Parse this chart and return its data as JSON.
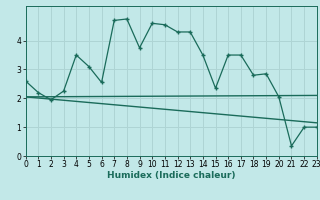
{
  "title": "",
  "xlabel": "Humidex (Indice chaleur)",
  "bg_color": "#c2e8e8",
  "line_color": "#1a6b5a",
  "grid_color": "#aed4d4",
  "xdata": [
    0,
    1,
    2,
    3,
    4,
    5,
    6,
    7,
    8,
    9,
    10,
    11,
    12,
    13,
    14,
    15,
    16,
    17,
    18,
    19,
    20,
    21,
    22,
    23
  ],
  "ydata": [
    2.6,
    2.2,
    1.95,
    2.25,
    3.5,
    3.1,
    2.55,
    4.7,
    4.75,
    3.75,
    4.6,
    4.55,
    4.3,
    4.3,
    3.5,
    2.35,
    3.5,
    3.5,
    2.8,
    2.85,
    2.05,
    0.35,
    1.0,
    1.0
  ],
  "trend1_x": [
    0,
    23
  ],
  "trend1_y": [
    2.05,
    2.1
  ],
  "trend2_x": [
    0,
    23
  ],
  "trend2_y": [
    2.05,
    1.15
  ],
  "xlim": [
    0,
    23
  ],
  "ylim": [
    0,
    5.2
  ],
  "yticks": [
    0,
    1,
    2,
    3,
    4
  ],
  "xticks": [
    0,
    1,
    2,
    3,
    4,
    5,
    6,
    7,
    8,
    9,
    10,
    11,
    12,
    13,
    14,
    15,
    16,
    17,
    18,
    19,
    20,
    21,
    22,
    23
  ],
  "tick_fontsize": 5.5,
  "xlabel_fontsize": 6.5
}
